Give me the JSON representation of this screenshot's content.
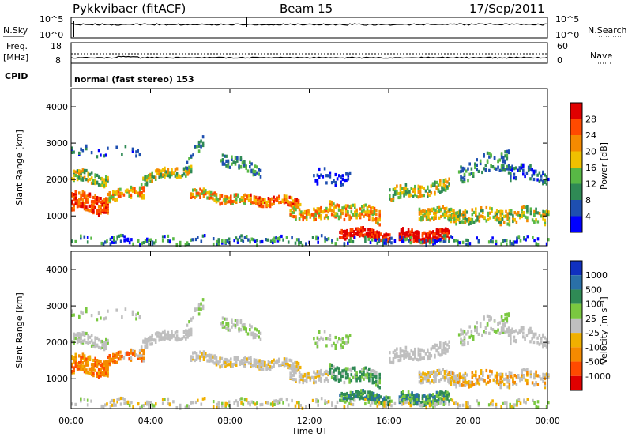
{
  "header": {
    "station": "Pykkvibaer (fitACF)",
    "beam": "Beam 15",
    "date": "17/Sep/2011"
  },
  "noise_panel": {
    "left_label": "N.Sky",
    "right_label": "N.Search",
    "left_ticks": [
      "10^5",
      "10^0"
    ],
    "right_ticks": [
      "10^5",
      "10^0"
    ]
  },
  "freq_panel": {
    "left_label_1": "Freq.",
    "left_label_2": "[MHz]",
    "right_label": "Nave",
    "left_ticks": [
      "18",
      "8"
    ],
    "right_ticks": [
      "60",
      "0"
    ]
  },
  "cpid": {
    "label": "CPID",
    "text": "normal (fast stereo) 153"
  },
  "range_axis": {
    "label": "Slant Range [km]",
    "ticks": [
      "1000",
      "2000",
      "3000",
      "4000"
    ]
  },
  "time_axis": {
    "label": "Time UT",
    "ticks": [
      "00:00",
      "04:00",
      "08:00",
      "12:00",
      "16:00",
      "20:00",
      "00:00"
    ]
  },
  "power_scale": {
    "label": "Power [dB]",
    "ticks": [
      "4",
      "8",
      "12",
      "16",
      "20",
      "24",
      "28"
    ],
    "colors": [
      "#0000ff",
      "#1e4fb0",
      "#2f8a55",
      "#58b845",
      "#f0c000",
      "#f58a00",
      "#ff4a00",
      "#e00000"
    ]
  },
  "velocity_scale": {
    "label": "Velocity [m s⁻¹]",
    "ticks": [
      "1000",
      "500",
      "100",
      "25",
      "-25",
      "-100",
      "-500",
      "-1000"
    ],
    "colors": [
      "#1030c0",
      "#2a70a8",
      "#2f8a55",
      "#7ac840",
      "#bfbfbf",
      "#f0b000",
      "#f58a00",
      "#ff4a00",
      "#e00000"
    ]
  },
  "chart_data": {
    "type": "heatmap",
    "x_range_hours": [
      0,
      24
    ],
    "y_range_km": [
      180,
      4500
    ],
    "panels": [
      "Power [dB]",
      "Velocity [m s⁻¹]"
    ],
    "power_range_db": [
      0,
      30
    ],
    "velocity_range": [
      -1000,
      1000
    ]
  }
}
